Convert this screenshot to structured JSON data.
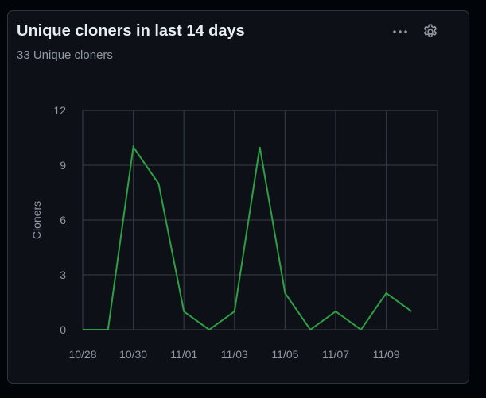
{
  "card": {
    "title": "Unique cloners in last 14 days",
    "subtitle": "33 Unique cloners",
    "more_icon": "kebab-horizontal-icon",
    "settings_icon": "gear-icon"
  },
  "colors": {
    "background": "#010409",
    "card_bg": "#0d1117",
    "border": "#30363d",
    "grid": "#30363d",
    "line": "#2ea043",
    "text_primary": "#e6edf3",
    "text_muted": "#9198a1"
  },
  "chart_data": {
    "type": "line",
    "title": "",
    "xlabel": "",
    "ylabel": "Cloners",
    "ylim": [
      0,
      12
    ],
    "yticks": [
      "0",
      "3",
      "6",
      "9",
      "12"
    ],
    "xticks": [
      "10/28",
      "10/30",
      "11/01",
      "11/03",
      "11/05",
      "11/07",
      "11/09"
    ],
    "x": [
      "10/28",
      "10/29",
      "10/30",
      "10/31",
      "11/01",
      "11/02",
      "11/03",
      "11/04",
      "11/05",
      "11/06",
      "11/07",
      "11/08",
      "11/09",
      "11/10"
    ],
    "series": [
      {
        "values": [
          0,
          0,
          10,
          8,
          1,
          0,
          1,
          10,
          2,
          0,
          1,
          0,
          2,
          1
        ]
      }
    ],
    "grid": true,
    "legend": "none"
  }
}
